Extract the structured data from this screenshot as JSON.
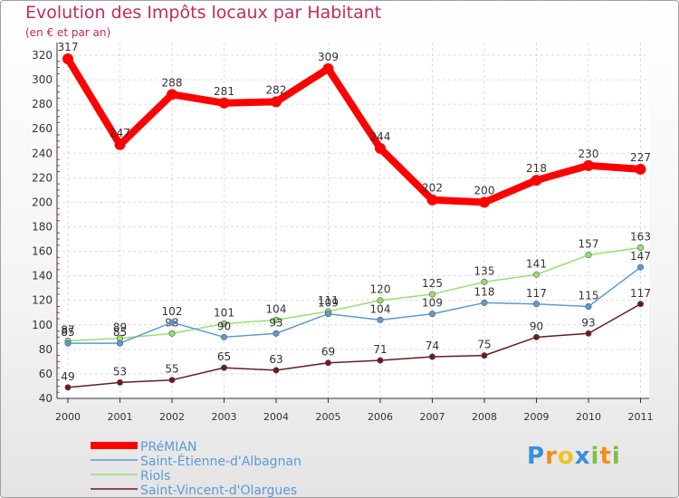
{
  "chart_data": {
    "type": "line",
    "title": "Evolution des Impôts locaux par Habitant",
    "subtitle": "(en € et par an)",
    "x": [
      "2000",
      "2001",
      "2002",
      "2003",
      "2004",
      "2005",
      "2006",
      "2007",
      "2008",
      "2009",
      "2010",
      "2011"
    ],
    "ylim": [
      40,
      320
    ],
    "yticks": [
      40,
      60,
      80,
      100,
      120,
      140,
      160,
      180,
      200,
      220,
      240,
      260,
      280,
      300,
      320
    ],
    "grid": true,
    "legend_position": "bottom-left",
    "series": [
      {
        "name": "Saint-Vincent-d'Olargues",
        "color": "#6b1a20",
        "values": [
          49,
          53,
          55,
          65,
          63,
          69,
          71,
          74,
          75,
          90,
          93,
          117
        ]
      },
      {
        "name": "Riols",
        "color": "#99e06e",
        "values": [
          87,
          89,
          93,
          101,
          104,
          111,
          120,
          125,
          135,
          141,
          157,
          163
        ]
      },
      {
        "name": "Saint-Étienne-d'Albagnan",
        "color": "#5b9bd5",
        "values": [
          85,
          85,
          102,
          90,
          93,
          109,
          104,
          109,
          118,
          117,
          115,
          147
        ]
      },
      {
        "name": "PRéMIAN",
        "color": "#ff0000",
        "values": [
          317,
          247,
          288,
          281,
          282,
          309,
          244,
          202,
          200,
          218,
          230,
          227
        ]
      }
    ],
    "legend_order": [
      "PRéMIAN",
      "Saint-Étienne-d'Albagnan",
      "Riols",
      "Saint-Vincent-d'Olargues"
    ]
  },
  "logo": {
    "letters": [
      "P",
      "r",
      "o",
      "x",
      "i",
      "t",
      "i"
    ],
    "colors": [
      "#3a8fd9",
      "#f28c1e",
      "#f2c21e",
      "#3a8fd9",
      "#7cc242",
      "#f28c1e",
      "#7cc242"
    ]
  }
}
